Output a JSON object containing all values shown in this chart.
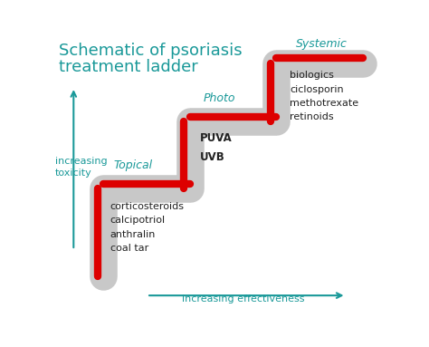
{
  "title_line1": "Schematic of psoriasis",
  "title_line2": "treatment ladder",
  "title_color": "#1a9999",
  "title_fontsize": 13,
  "background_color": "#ffffff",
  "teal_color": "#1a9999",
  "red_color": "#dd0000",
  "gray_color": "#c8c8c8",
  "step_labels": [
    "Topical",
    "Photo",
    "Systemic"
  ],
  "step_label_color": "#1a9999",
  "step_label_fontsize": 9,
  "topical_drugs": [
    "corticosteroids",
    "calcipotriol",
    "anthralin",
    "coal tar"
  ],
  "photo_drugs": [
    "PUVA",
    "UVB"
  ],
  "systemic_drugs": [
    "biologics",
    "ciclosporin",
    "methotrexate",
    "retinoids"
  ],
  "drug_fontsize": 8,
  "drug_color": "#222222",
  "axis_label_color": "#1a9999",
  "axis_label_fontsize": 8,
  "x_axis_label": "increasing effectiveness",
  "y_axis_label": "increasing\ntoxicity"
}
